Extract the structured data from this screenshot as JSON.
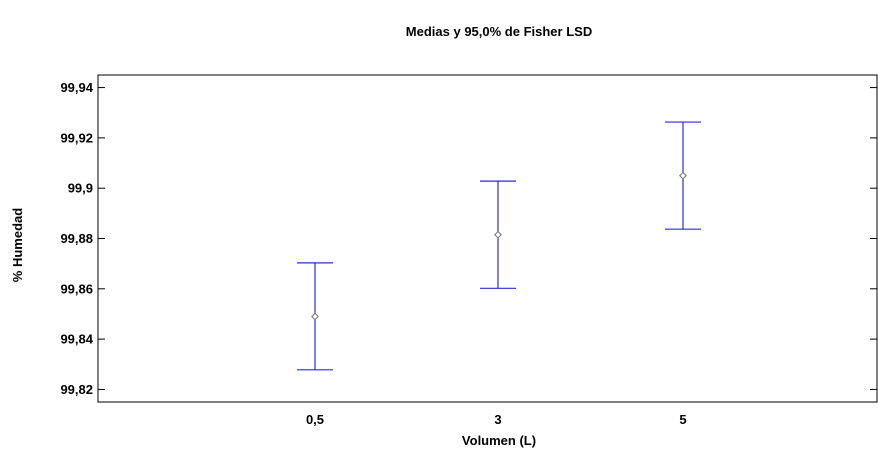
{
  "chart_data": {
    "type": "errorbar",
    "title": "Medias y 95,0% de Fisher LSD",
    "xlabel": "Volumen (L)",
    "ylabel": "% Humedad",
    "categories": [
      "0,5",
      "3",
      "5"
    ],
    "means": [
      99.849,
      99.8815,
      99.905
    ],
    "lower": [
      99.8278,
      99.8602,
      99.8837
    ],
    "upper": [
      99.8703,
      99.9028,
      99.9263
    ],
    "ylim": [
      99.815,
      99.945
    ],
    "yticks": [
      99.82,
      99.84,
      99.86,
      99.88,
      99.9,
      99.92,
      99.94
    ],
    "ytick_labels": [
      "99,82",
      "99,84",
      "99,86",
      "99,88",
      "99,9",
      "99,92",
      "99,94"
    ],
    "grid": false,
    "colors": {
      "interval": "#2b2bd6",
      "mean_marker": "#707070",
      "axes": "#000000"
    }
  }
}
